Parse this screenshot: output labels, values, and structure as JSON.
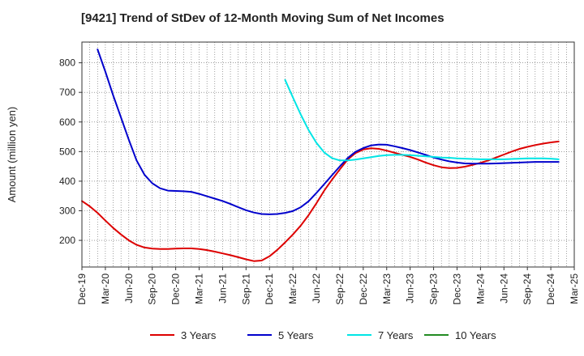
{
  "chart_data": {
    "type": "line",
    "title": "[9421]  Trend of StDev of 12-Month Moving Sum of Net Incomes",
    "xlabel": "",
    "ylabel": "Amount (million yen)",
    "x_ticks": [
      "Dec-19",
      "Mar-20",
      "Jun-20",
      "Sep-20",
      "Dec-20",
      "Mar-21",
      "Jun-21",
      "Sep-21",
      "Dec-21",
      "Mar-22",
      "Jun-22",
      "Sep-22",
      "Dec-22",
      "Mar-23",
      "Jun-23",
      "Sep-23",
      "Dec-23",
      "Mar-24",
      "Jun-24",
      "Sep-24",
      "Dec-24",
      "Mar-25"
    ],
    "y_ticks": [
      200,
      300,
      400,
      500,
      600,
      700,
      800
    ],
    "xlim": [
      "Dec-19",
      "Mar-25"
    ],
    "ylim": [
      110,
      870
    ],
    "grid": true,
    "legend_position": "bottom",
    "series": [
      {
        "name": "3 Years",
        "color": "#dd0000",
        "points": [
          [
            "Dec-19",
            333
          ],
          [
            "Jan-20",
            315
          ],
          [
            "Feb-20",
            293
          ],
          [
            "Mar-20",
            267
          ],
          [
            "Apr-20",
            242
          ],
          [
            "May-20",
            220
          ],
          [
            "Jun-20",
            200
          ],
          [
            "Jul-20",
            185
          ],
          [
            "Aug-20",
            176
          ],
          [
            "Sep-20",
            172
          ],
          [
            "Oct-20",
            171
          ],
          [
            "Nov-20",
            171
          ],
          [
            "Dec-20",
            172
          ],
          [
            "Jan-21",
            173
          ],
          [
            "Feb-21",
            173
          ],
          [
            "Mar-21",
            171
          ],
          [
            "Apr-21",
            167
          ],
          [
            "May-21",
            162
          ],
          [
            "Jun-21",
            156
          ],
          [
            "Jul-21",
            150
          ],
          [
            "Aug-21",
            143
          ],
          [
            "Sep-21",
            136
          ],
          [
            "Oct-21",
            130
          ],
          [
            "Nov-21",
            132
          ],
          [
            "Dec-21",
            146
          ],
          [
            "Jan-22",
            168
          ],
          [
            "Feb-22",
            193
          ],
          [
            "Mar-22",
            220
          ],
          [
            "Apr-22",
            250
          ],
          [
            "May-22",
            285
          ],
          [
            "Jun-22",
            325
          ],
          [
            "Jul-22",
            368
          ],
          [
            "Aug-22",
            405
          ],
          [
            "Sep-22",
            440
          ],
          [
            "Oct-22",
            473
          ],
          [
            "Nov-22",
            495
          ],
          [
            "Dec-22",
            507
          ],
          [
            "Jan-23",
            511
          ],
          [
            "Feb-23",
            509
          ],
          [
            "Mar-23",
            503
          ],
          [
            "Apr-23",
            496
          ],
          [
            "May-23",
            489
          ],
          [
            "Jun-23",
            482
          ],
          [
            "Jul-23",
            473
          ],
          [
            "Aug-23",
            463
          ],
          [
            "Sep-23",
            454
          ],
          [
            "Oct-23",
            447
          ],
          [
            "Nov-23",
            444
          ],
          [
            "Dec-23",
            445
          ],
          [
            "Jan-24",
            449
          ],
          [
            "Feb-24",
            455
          ],
          [
            "Mar-24",
            462
          ],
          [
            "Apr-24",
            470
          ],
          [
            "May-24",
            480
          ],
          [
            "Jun-24",
            490
          ],
          [
            "Jul-24",
            500
          ],
          [
            "Aug-24",
            509
          ],
          [
            "Sep-24",
            516
          ],
          [
            "Oct-24",
            522
          ],
          [
            "Nov-24",
            527
          ],
          [
            "Dec-24",
            531
          ],
          [
            "Jan-25",
            534
          ]
        ]
      },
      {
        "name": "5 Years",
        "color": "#0000cc",
        "points": [
          [
            "Feb-20",
            845
          ],
          [
            "Mar-20",
            770
          ],
          [
            "Apr-20",
            690
          ],
          [
            "May-20",
            615
          ],
          [
            "Jun-20",
            540
          ],
          [
            "Jul-20",
            470
          ],
          [
            "Aug-20",
            422
          ],
          [
            "Sep-20",
            393
          ],
          [
            "Oct-20",
            376
          ],
          [
            "Nov-20",
            368
          ],
          [
            "Dec-20",
            367
          ],
          [
            "Jan-21",
            366
          ],
          [
            "Feb-21",
            364
          ],
          [
            "Mar-21",
            357
          ],
          [
            "Apr-21",
            349
          ],
          [
            "May-21",
            341
          ],
          [
            "Jun-21",
            333
          ],
          [
            "Jul-21",
            323
          ],
          [
            "Aug-21",
            312
          ],
          [
            "Sep-21",
            302
          ],
          [
            "Oct-21",
            294
          ],
          [
            "Nov-21",
            289
          ],
          [
            "Dec-21",
            288
          ],
          [
            "Jan-22",
            289
          ],
          [
            "Feb-22",
            293
          ],
          [
            "Mar-22",
            299
          ],
          [
            "Apr-22",
            312
          ],
          [
            "May-22",
            332
          ],
          [
            "Jun-22",
            360
          ],
          [
            "Jul-22",
            390
          ],
          [
            "Aug-22",
            420
          ],
          [
            "Sep-22",
            450
          ],
          [
            "Oct-22",
            478
          ],
          [
            "Nov-22",
            499
          ],
          [
            "Dec-22",
            512
          ],
          [
            "Jan-23",
            521
          ],
          [
            "Feb-23",
            524
          ],
          [
            "Mar-23",
            523
          ],
          [
            "Apr-23",
            518
          ],
          [
            "May-23",
            512
          ],
          [
            "Jun-23",
            505
          ],
          [
            "Jul-23",
            497
          ],
          [
            "Aug-23",
            489
          ],
          [
            "Sep-23",
            480
          ],
          [
            "Oct-23",
            473
          ],
          [
            "Nov-23",
            467
          ],
          [
            "Dec-23",
            463
          ],
          [
            "Jan-24",
            460
          ],
          [
            "Feb-24",
            459
          ],
          [
            "Mar-24",
            459
          ],
          [
            "Apr-24",
            459
          ],
          [
            "May-24",
            460
          ],
          [
            "Jun-24",
            461
          ],
          [
            "Jul-24",
            462
          ],
          [
            "Aug-24",
            463
          ],
          [
            "Sep-24",
            464
          ],
          [
            "Oct-24",
            465
          ],
          [
            "Nov-24",
            465
          ],
          [
            "Dec-24",
            465
          ],
          [
            "Jan-25",
            465
          ]
        ]
      },
      {
        "name": "7 Years",
        "color": "#00e5e5",
        "points": [
          [
            "Feb-22",
            742
          ],
          [
            "Mar-22",
            683
          ],
          [
            "Apr-22",
            625
          ],
          [
            "May-22",
            573
          ],
          [
            "Jun-22",
            530
          ],
          [
            "Jul-22",
            497
          ],
          [
            "Aug-22",
            478
          ],
          [
            "Sep-22",
            470
          ],
          [
            "Oct-22",
            470
          ],
          [
            "Nov-22",
            473
          ],
          [
            "Dec-22",
            477
          ],
          [
            "Jan-23",
            481
          ],
          [
            "Feb-23",
            485
          ],
          [
            "Mar-23",
            488
          ],
          [
            "Apr-23",
            489
          ],
          [
            "May-23",
            489
          ],
          [
            "Jun-23",
            488
          ],
          [
            "Jul-23",
            486
          ],
          [
            "Aug-23",
            484
          ],
          [
            "Sep-23",
            482
          ],
          [
            "Oct-23",
            480
          ],
          [
            "Nov-23",
            479
          ],
          [
            "Dec-23",
            477
          ],
          [
            "Jan-24",
            476
          ],
          [
            "Feb-24",
            475
          ],
          [
            "Mar-24",
            474
          ],
          [
            "Apr-24",
            474
          ],
          [
            "May-24",
            474
          ],
          [
            "Jun-24",
            474
          ],
          [
            "Jul-24",
            475
          ],
          [
            "Aug-24",
            476
          ],
          [
            "Sep-24",
            477
          ],
          [
            "Oct-24",
            477
          ],
          [
            "Nov-24",
            477
          ],
          [
            "Dec-24",
            476
          ],
          [
            "Jan-25",
            474
          ]
        ]
      },
      {
        "name": "10 Years",
        "color": "#228b22",
        "points": []
      }
    ]
  }
}
